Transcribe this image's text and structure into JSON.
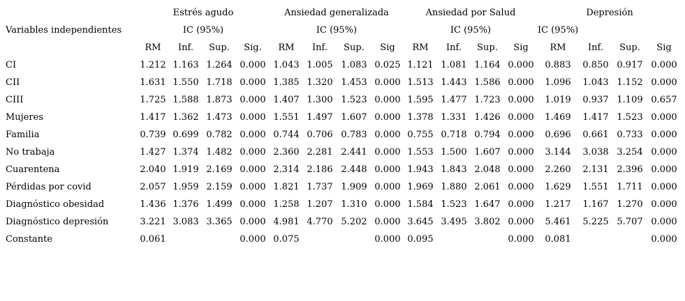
{
  "table": {
    "row_label_header": "Variables independientes",
    "groups": [
      {
        "title": "Estrés agudo",
        "ci_label": "IC (95%)",
        "cols": [
          "RM",
          "Inf.",
          "Sup.",
          "Sig."
        ]
      },
      {
        "title": "Ansiedad generalizada",
        "ci_label": "IC (95%)",
        "cols": [
          "RM",
          "Inf.",
          "Sup.",
          "Sig"
        ]
      },
      {
        "title": "Ansiedad por Salud",
        "ci_label": "IC (95%)",
        "cols": [
          "RM",
          "Inf.",
          "Sup.",
          "Sig"
        ]
      },
      {
        "title": "Depresión",
        "ci_label": "IC (95%)",
        "cols": [
          "RM",
          "Inf.",
          "Sup.",
          "Sig"
        ]
      }
    ],
    "rows": [
      {
        "label": "CI",
        "values": [
          "1.212",
          "1.163",
          "1.264",
          "0.000",
          "1.043",
          "1.005",
          "1.083",
          "0.025",
          "1.121",
          "1.081",
          "1.164",
          "0.000",
          "0.883",
          "0.850",
          "0.917",
          "0.000"
        ]
      },
      {
        "label": "CII",
        "values": [
          "1.631",
          "1.550",
          "1.718",
          "0.000",
          "1.385",
          "1.320",
          "1.453",
          "0.000",
          "1.513",
          "1.443",
          "1.586",
          "0.000",
          "1.096",
          "1.043",
          "1.152",
          "0.000"
        ]
      },
      {
        "label": "CIII",
        "values": [
          "1.725",
          "1.588",
          "1.873",
          "0.000",
          "1.407",
          "1.300",
          "1.523",
          "0.000",
          "1.595",
          "1.477",
          "1.723",
          "0.000",
          "1.019",
          "0.937",
          "1.109",
          "0.657"
        ]
      },
      {
        "label": "Mujeres",
        "values": [
          "1.417",
          "1.362",
          "1.473",
          "0.000",
          "1.551",
          "1.497",
          "1.607",
          "0.000",
          "1.378",
          "1.331",
          "1.426",
          "0.000",
          "1.469",
          "1.417",
          "1.523",
          "0.000"
        ]
      },
      {
        "label": "Familia",
        "values": [
          "0.739",
          "0.699",
          "0.782",
          "0.000",
          "0.744",
          "0.706",
          "0.783",
          "0.000",
          "0.755",
          "0.718",
          "0.794",
          "0.000",
          "0.696",
          "0.661",
          "0.733",
          "0.000"
        ]
      },
      {
        "label": "No trabaja",
        "values": [
          "1.427",
          "1.374",
          "1.482",
          "0.000",
          "2.360",
          "2.281",
          "2.441",
          "0.000",
          "1.553",
          "1.500",
          "1.607",
          "0.000",
          "3.144",
          "3.038",
          "3.254",
          "0.000"
        ]
      },
      {
        "label": "Cuarentena",
        "values": [
          "2.040",
          "1.919",
          "2.169",
          "0.000",
          "2.314",
          "2.186",
          "2.448",
          "0.000",
          "1.943",
          "1.843",
          "2.048",
          "0.000",
          "2.260",
          "2.131",
          "2.396",
          "0.000"
        ]
      },
      {
        "label": "Pérdidas por covid",
        "values": [
          "2.057",
          "1.959",
          "2.159",
          "0.000",
          "1.821",
          "1.737",
          "1.909",
          "0.000",
          "1.969",
          "1.880",
          "2.061",
          "0.000",
          "1.629",
          "1.551",
          "1.711",
          "0.000"
        ]
      },
      {
        "label": "Diagnóstico obesidad",
        "values": [
          "1.436",
          "1.376",
          "1.499",
          "0.000",
          "1.258",
          "1.207",
          "1.310",
          "0.000",
          "1.584",
          "1.523",
          "1.647",
          "0.000",
          "1.217",
          "1.167",
          "1.270",
          "0.000"
        ]
      },
      {
        "label": "Diagnóstico depresión",
        "values": [
          "3.221",
          "3.083",
          "3.365",
          "0.000",
          "4.981",
          "4.770",
          "5.202",
          "0.000",
          "3.645",
          "3.495",
          "3.802",
          "0.000",
          "5.461",
          "5.225",
          "5.707",
          "0.000"
        ]
      },
      {
        "label": "Constante",
        "values": [
          "0.061",
          "",
          "",
          "0.000",
          "0.075",
          "",
          "",
          "0.000",
          "0.095",
          "",
          "",
          "0.000",
          "0.081",
          "",
          "",
          "0.000"
        ]
      }
    ]
  }
}
